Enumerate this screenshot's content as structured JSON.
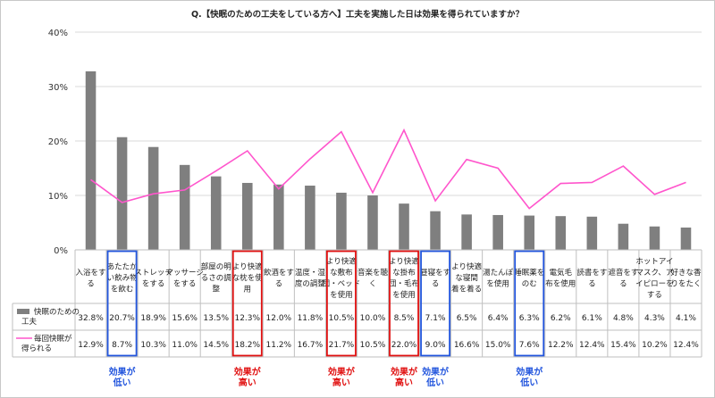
{
  "chart_data": {
    "type": "bar+line",
    "title": "Q.【快眠のための工夫をしている方へ】工夫を実施した日は効果を得られていますか？",
    "ylim": [
      0,
      40
    ],
    "yticks": [
      "0%",
      "10%",
      "20%",
      "30%",
      "40%"
    ],
    "grid": true,
    "categories": [
      [
        "入浴をす",
        "る"
      ],
      [
        "あたたか",
        "い飲み物",
        "を飲む"
      ],
      [
        "ストレッチ",
        "をする"
      ],
      [
        "マッサージ",
        "をする"
      ],
      [
        "部屋の明",
        "るさの調",
        "整"
      ],
      [
        "より快適",
        "な枕を使",
        "用"
      ],
      [
        "飲酒をす",
        "る"
      ],
      [
        "温度・湿",
        "度の調整"
      ],
      [
        "より快適",
        "な敷布",
        "団・ベッド",
        "を使用"
      ],
      [
        "音楽を聴",
        "く"
      ],
      [
        "より快適",
        "な掛布",
        "団・毛布",
        "を使用"
      ],
      [
        "昼寝をす",
        "る"
      ],
      [
        "より快適",
        "な寝間",
        "着を着る"
      ],
      [
        "湯たんぽ",
        "を使用"
      ],
      [
        "睡眠薬を",
        "のむ"
      ],
      [
        "電気毛",
        "布を使用"
      ],
      [
        "読書をす",
        "る"
      ],
      [
        "遮音をす",
        "る"
      ],
      [
        "ホットアイ",
        "マスク、ア",
        "イピローを",
        "する"
      ],
      [
        "好きな香",
        "りをたく"
      ]
    ],
    "series": [
      {
        "name": [
          "快眠のための",
          "工夫"
        ],
        "type": "bar",
        "color": "#7f7f7f",
        "values": [
          32.8,
          20.7,
          18.9,
          15.6,
          13.5,
          12.3,
          12.0,
          11.8,
          10.5,
          10.0,
          8.5,
          7.1,
          6.5,
          6.4,
          6.3,
          6.2,
          6.1,
          4.8,
          4.3,
          4.1
        ],
        "labels": [
          "32.8%",
          "20.7%",
          "18.9%",
          "15.6%",
          "13.5%",
          "12.3%",
          "12.0%",
          "11.8%",
          "10.5%",
          "10.0%",
          "8.5%",
          "7.1%",
          "6.5%",
          "6.4%",
          "6.3%",
          "6.2%",
          "6.1%",
          "4.8%",
          "4.3%",
          "4.1%"
        ]
      },
      {
        "name": [
          "毎回快眠が",
          "得られる"
        ],
        "type": "line",
        "color": "#ff55cc",
        "values": [
          12.9,
          8.7,
          10.3,
          11.0,
          14.5,
          18.2,
          11.2,
          16.7,
          21.7,
          10.5,
          22.0,
          9.0,
          16.6,
          15.0,
          7.6,
          12.2,
          12.4,
          15.4,
          10.2,
          12.4
        ],
        "labels": [
          "12.9%",
          "8.7%",
          "10.3%",
          "11.0%",
          "14.5%",
          "18.2%",
          "11.2%",
          "16.7%",
          "21.7%",
          "10.5%",
          "22.0%",
          "9.0%",
          "16.6%",
          "15.0%",
          "7.6%",
          "12.2%",
          "12.4%",
          "15.4%",
          "10.2%",
          "12.4%"
        ]
      }
    ],
    "highlights": [
      {
        "index": 1,
        "color": "#2255dd",
        "text": [
          "効果が",
          "低い"
        ]
      },
      {
        "index": 5,
        "color": "#e01010",
        "text": [
          "効果が",
          "高い"
        ]
      },
      {
        "index": 8,
        "color": "#e01010",
        "text": [
          "効果が",
          "高い"
        ]
      },
      {
        "index": 10,
        "color": "#e01010",
        "text": [
          "効果が",
          "高い"
        ]
      },
      {
        "index": 11,
        "color": "#2255dd",
        "text": [
          "効果が",
          "低い"
        ]
      },
      {
        "index": 14,
        "color": "#2255dd",
        "text": [
          "効果が",
          "低い"
        ]
      }
    ]
  }
}
